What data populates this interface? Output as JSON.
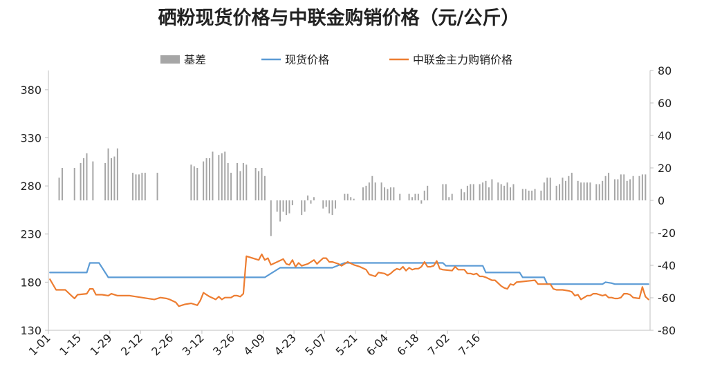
{
  "chart_data": {
    "type": "line",
    "title": "硒粉现货价格与中联金购销价格（元/公斤）",
    "xlabel": "",
    "ylabel": "",
    "y_left": {
      "range": [
        130,
        400
      ],
      "ticks": [
        130,
        180,
        230,
        280,
        330,
        380
      ]
    },
    "y_right": {
      "range": [
        -80,
        80
      ],
      "ticks": [
        -80,
        -60,
        -40,
        -20,
        0,
        20,
        40,
        60,
        80
      ]
    },
    "x_ticks": [
      "1-01",
      "1-15",
      "1-29",
      "2-12",
      "2-26",
      "3-12",
      "3-26",
      "4-09",
      "4-23",
      "5-07",
      "5-21",
      "6-04",
      "6-18",
      "7-02",
      "7-16"
    ],
    "legend": {
      "position": "top"
    },
    "series": [
      {
        "name": "基差",
        "type": "bar",
        "axis": "right",
        "color": "#a6a6a6",
        "points": [
          [
            3,
            14
          ],
          [
            4,
            20
          ],
          [
            8,
            20
          ],
          [
            10,
            23
          ],
          [
            11,
            26
          ],
          [
            12,
            29
          ],
          [
            14,
            24
          ],
          [
            18,
            23
          ],
          [
            19,
            32
          ],
          [
            20,
            26
          ],
          [
            21,
            27
          ],
          [
            22,
            32
          ],
          [
            27,
            17
          ],
          [
            28,
            16
          ],
          [
            29,
            16
          ],
          [
            30,
            17
          ],
          [
            31,
            17
          ],
          [
            35,
            17
          ],
          [
            46,
            22
          ],
          [
            47,
            21
          ],
          [
            48,
            20
          ],
          [
            50,
            24
          ],
          [
            51,
            26
          ],
          [
            52,
            26
          ],
          [
            53,
            30
          ],
          [
            55,
            28
          ],
          [
            56,
            29
          ],
          [
            57,
            30
          ],
          [
            58,
            23
          ],
          [
            59,
            17
          ],
          [
            61,
            23
          ],
          [
            62,
            18
          ],
          [
            63,
            23
          ],
          [
            64,
            22
          ],
          [
            67,
            20
          ],
          [
            68,
            18
          ],
          [
            69,
            20
          ],
          [
            70,
            15
          ],
          [
            72,
            -22
          ],
          [
            74,
            -7
          ],
          [
            75,
            -13
          ],
          [
            76,
            -7
          ],
          [
            77,
            -9
          ],
          [
            78,
            -8
          ],
          [
            79,
            -3
          ],
          [
            82,
            -9
          ],
          [
            83,
            -7
          ],
          [
            84,
            3
          ],
          [
            85,
            -2
          ],
          [
            86,
            2
          ],
          [
            89,
            -5
          ],
          [
            90,
            -4
          ],
          [
            91,
            -8
          ],
          [
            92,
            -9
          ],
          [
            93,
            -5
          ],
          [
            96,
            4
          ],
          [
            97,
            4
          ],
          [
            98,
            2
          ],
          [
            99,
            1
          ],
          [
            102,
            8
          ],
          [
            103,
            9
          ],
          [
            104,
            11
          ],
          [
            105,
            15
          ],
          [
            106,
            11
          ],
          [
            108,
            11
          ],
          [
            109,
            8
          ],
          [
            110,
            7
          ],
          [
            111,
            8
          ],
          [
            112,
            8
          ],
          [
            114,
            4
          ],
          [
            117,
            4
          ],
          [
            118,
            2
          ],
          [
            119,
            4
          ],
          [
            120,
            4
          ],
          [
            121,
            -2
          ],
          [
            122,
            6
          ],
          [
            123,
            9
          ],
          [
            128,
            10
          ],
          [
            129,
            10
          ],
          [
            130,
            2
          ],
          [
            131,
            4
          ],
          [
            134,
            7
          ],
          [
            135,
            5
          ],
          [
            136,
            9
          ],
          [
            137,
            10
          ],
          [
            138,
            10
          ],
          [
            140,
            10
          ],
          [
            141,
            11
          ],
          [
            142,
            12
          ],
          [
            143,
            8
          ],
          [
            144,
            13
          ],
          [
            146,
            11
          ],
          [
            147,
            10
          ],
          [
            148,
            9
          ],
          [
            149,
            11
          ],
          [
            150,
            8
          ],
          [
            151,
            10
          ],
          [
            154,
            7
          ],
          [
            155,
            7
          ],
          [
            156,
            6
          ],
          [
            157,
            6
          ],
          [
            158,
            7
          ],
          [
            160,
            6
          ],
          [
            161,
            11
          ],
          [
            162,
            14
          ],
          [
            163,
            14
          ],
          [
            165,
            9
          ],
          [
            166,
            10
          ],
          [
            167,
            14
          ],
          [
            168,
            12
          ],
          [
            169,
            15
          ],
          [
            170,
            17
          ],
          [
            172,
            12
          ],
          [
            173,
            11
          ],
          [
            174,
            11
          ],
          [
            175,
            11
          ],
          [
            176,
            11
          ],
          [
            178,
            10
          ],
          [
            179,
            10
          ],
          [
            180,
            12
          ],
          [
            181,
            15
          ],
          [
            182,
            17
          ],
          [
            184,
            13
          ],
          [
            185,
            13
          ],
          [
            186,
            16
          ],
          [
            187,
            16
          ],
          [
            188,
            12
          ],
          [
            189,
            13
          ],
          [
            190,
            15
          ],
          [
            192,
            15
          ],
          [
            193,
            16
          ],
          [
            194,
            16
          ]
        ]
      },
      {
        "name": "现货价格",
        "type": "line",
        "axis": "left",
        "color": "#5b9bd5",
        "points": [
          [
            0,
            190
          ],
          [
            12,
            190
          ],
          [
            13,
            200
          ],
          [
            16,
            200
          ],
          [
            19,
            185
          ],
          [
            63,
            185
          ],
          [
            64,
            185
          ],
          [
            70,
            185
          ],
          [
            71,
            187
          ],
          [
            75,
            195
          ],
          [
            91,
            195
          ],
          [
            92,
            195
          ],
          [
            96,
            200
          ],
          [
            128,
            200
          ],
          [
            129,
            197
          ],
          [
            141,
            197
          ],
          [
            142,
            190
          ],
          [
            153,
            190
          ],
          [
            154,
            185
          ],
          [
            161,
            185
          ],
          [
            162,
            178
          ],
          [
            180,
            178
          ],
          [
            181,
            180
          ],
          [
            183,
            179
          ],
          [
            184,
            178
          ],
          [
            195,
            178
          ]
        ]
      },
      {
        "name": "中联金主力购销价格",
        "type": "line",
        "axis": "left",
        "color": "#ed7d31",
        "points": [
          [
            0,
            183
          ],
          [
            2,
            172
          ],
          [
            5,
            172
          ],
          [
            7,
            166
          ],
          [
            8,
            163
          ],
          [
            9,
            167
          ],
          [
            12,
            168
          ],
          [
            13,
            173
          ],
          [
            14,
            173
          ],
          [
            15,
            167
          ],
          [
            17,
            167
          ],
          [
            19,
            166
          ],
          [
            20,
            168
          ],
          [
            22,
            166
          ],
          [
            26,
            166
          ],
          [
            30,
            164
          ],
          [
            34,
            162
          ],
          [
            36,
            164
          ],
          [
            38,
            163
          ],
          [
            39,
            162
          ],
          [
            41,
            159
          ],
          [
            42,
            155
          ],
          [
            44,
            157
          ],
          [
            46,
            158
          ],
          [
            48,
            156
          ],
          [
            49,
            161
          ],
          [
            50,
            169
          ],
          [
            52,
            165
          ],
          [
            54,
            162
          ],
          [
            55,
            165
          ],
          [
            56,
            162
          ],
          [
            57,
            164
          ],
          [
            58,
            164
          ],
          [
            59,
            164
          ],
          [
            60,
            166
          ],
          [
            61,
            166
          ],
          [
            62,
            165
          ],
          [
            63,
            168
          ],
          [
            64,
            207
          ],
          [
            66,
            205
          ],
          [
            68,
            203
          ],
          [
            69,
            209
          ],
          [
            70,
            203
          ],
          [
            71,
            205
          ],
          [
            72,
            198
          ],
          [
            74,
            201
          ],
          [
            76,
            204
          ],
          [
            77,
            199
          ],
          [
            78,
            198
          ],
          [
            79,
            203
          ],
          [
            80,
            196
          ],
          [
            81,
            200
          ],
          [
            82,
            197
          ],
          [
            84,
            199
          ],
          [
            86,
            203
          ],
          [
            87,
            199
          ],
          [
            88,
            202
          ],
          [
            89,
            205
          ],
          [
            90,
            205
          ],
          [
            91,
            201
          ],
          [
            92,
            201
          ],
          [
            93,
            200
          ],
          [
            94,
            199
          ],
          [
            95,
            197
          ],
          [
            96,
            199
          ],
          [
            97,
            201
          ],
          [
            99,
            198
          ],
          [
            101,
            196
          ],
          [
            103,
            193
          ],
          [
            104,
            188
          ],
          [
            106,
            186
          ],
          [
            107,
            190
          ],
          [
            109,
            189
          ],
          [
            110,
            187
          ],
          [
            111,
            189
          ],
          [
            112,
            192
          ],
          [
            113,
            194
          ],
          [
            114,
            193
          ],
          [
            115,
            196
          ],
          [
            116,
            192
          ],
          [
            117,
            195
          ],
          [
            118,
            193
          ],
          [
            119,
            194
          ],
          [
            120,
            194
          ],
          [
            121,
            196
          ],
          [
            122,
            201
          ],
          [
            123,
            196
          ],
          [
            124,
            196
          ],
          [
            125,
            197
          ],
          [
            126,
            202
          ],
          [
            127,
            194
          ],
          [
            128,
            193
          ],
          [
            131,
            192
          ],
          [
            132,
            196
          ],
          [
            133,
            193
          ],
          [
            135,
            193
          ],
          [
            136,
            189
          ],
          [
            137,
            189
          ],
          [
            138,
            188
          ],
          [
            139,
            189
          ],
          [
            140,
            186
          ],
          [
            141,
            186
          ],
          [
            142,
            185
          ],
          [
            144,
            182
          ],
          [
            145,
            182
          ],
          [
            147,
            176
          ],
          [
            148,
            174
          ],
          [
            149,
            173
          ],
          [
            150,
            178
          ],
          [
            151,
            177
          ],
          [
            152,
            180
          ],
          [
            155,
            181
          ],
          [
            158,
            182
          ],
          [
            159,
            178
          ],
          [
            161,
            178
          ],
          [
            163,
            178
          ],
          [
            164,
            173
          ],
          [
            165,
            172
          ],
          [
            167,
            172
          ],
          [
            169,
            171
          ],
          [
            170,
            170
          ],
          [
            171,
            166
          ],
          [
            172,
            167
          ],
          [
            173,
            162
          ],
          [
            174,
            164
          ],
          [
            175,
            166
          ],
          [
            176,
            166
          ],
          [
            177,
            168
          ],
          [
            178,
            168
          ],
          [
            179,
            167
          ],
          [
            180,
            166
          ],
          [
            181,
            167
          ],
          [
            182,
            164
          ],
          [
            183,
            164
          ],
          [
            184,
            163
          ],
          [
            185,
            163
          ],
          [
            186,
            164
          ],
          [
            187,
            168
          ],
          [
            188,
            168
          ],
          [
            189,
            167
          ],
          [
            190,
            164
          ],
          [
            192,
            163
          ],
          [
            193,
            175
          ],
          [
            194,
            165
          ],
          [
            195,
            162
          ]
        ]
      }
    ]
  }
}
